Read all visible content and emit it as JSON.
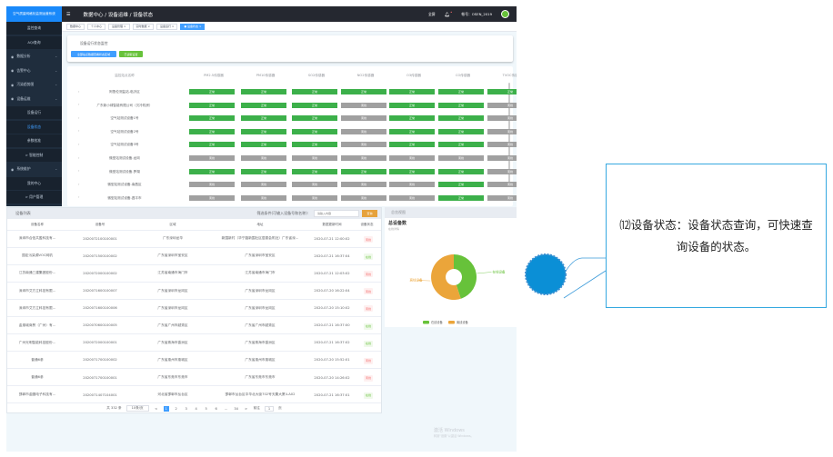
{
  "app": {
    "system_title": "空气质量网格化监测运营系统",
    "breadcrumb": "数据中心 / 设备运维 / 设备状态",
    "fullscreen": "全屏",
    "account": "帐号：OSEN_2019"
  },
  "sidebar": {
    "items": [
      {
        "label": "监控查询",
        "type": "sub"
      },
      {
        "label": "AQI查询",
        "type": "sub"
      },
      {
        "label": "数据分析",
        "type": "main",
        "icon": "bar-chart-icon"
      },
      {
        "label": "告警中心",
        "type": "main",
        "icon": "alarm-icon"
      },
      {
        "label": "污染趋势图",
        "type": "main",
        "icon": "trend-icon"
      },
      {
        "label": "设备运维",
        "type": "main",
        "icon": "gear-icon"
      },
      {
        "label": "设备运行",
        "type": "sub"
      },
      {
        "label": "设备状态",
        "type": "sub",
        "active": true
      },
      {
        "label": "参数校准",
        "type": "sub"
      },
      {
        "label": "> 智能控制",
        "type": "sub"
      },
      {
        "label": "系统维护",
        "type": "main",
        "icon": "gear-icon"
      },
      {
        "label": "我的中心",
        "type": "sub"
      },
      {
        "label": "> 用户管理",
        "type": "sub"
      }
    ]
  },
  "tags": [
    "数据中心",
    "个人中心",
    "设备管理 ×",
    "实时数据 ×",
    "设备运行 ×",
    "● 设备状态 ×"
  ],
  "monitor_card": {
    "title": "设备运行状态监控",
    "btn_all": "全部站点数据查看状态区域",
    "btn_read": "已读取设置"
  },
  "status_grid": {
    "headers": [
      "监控站点名称",
      "PM2.5传感器",
      "PM10传感器",
      "SO2传感器",
      "NO2传感器",
      "O3传感器",
      "CO传感器",
      "TVOC传感器"
    ],
    "labels": {
      "ok": "正常",
      "off": "离线"
    },
    "colors": {
      "ok": "#3cb04a",
      "off": "#a0a0a0"
    },
    "rows": [
      {
        "name": "阿鲁伦测监站-临沂区",
        "s": [
          1,
          1,
          1,
          1,
          1,
          1,
          1
        ]
      },
      {
        "name": "广东新小绿智能有限公司（贝冷机房）",
        "s": [
          1,
          1,
          1,
          0,
          1,
          1,
          0
        ]
      },
      {
        "name": "空气站测试设备1号",
        "s": [
          1,
          1,
          1,
          0,
          1,
          1,
          0
        ]
      },
      {
        "name": "空气站测试设备2号",
        "s": [
          1,
          1,
          1,
          0,
          1,
          1,
          0
        ]
      },
      {
        "name": "空气站测试设备3号",
        "s": [
          1,
          1,
          1,
          0,
          1,
          1,
          0
        ]
      },
      {
        "name": "微型站测试设备-龙岗",
        "s": [
          0,
          0,
          0,
          0,
          0,
          0,
          0
        ]
      },
      {
        "name": "微型站测试设备-罗湖",
        "s": [
          1,
          1,
          1,
          1,
          1,
          1,
          0
        ]
      },
      {
        "name": "微型站测试设备-南昌区",
        "s": [
          0,
          0,
          0,
          0,
          0,
          1,
          0
        ]
      },
      {
        "name": "微型站测试设备-昌平市",
        "s": [
          0,
          0,
          0,
          0,
          0,
          1,
          0
        ]
      }
    ]
  },
  "device_list": {
    "title": "设备列表",
    "filter_label": "筛选条件(可输入设备号和名称):",
    "placeholder": "请输入内容",
    "query": "查询",
    "columns": [
      "设备名称",
      "设备号",
      "区域",
      "地址",
      "数据更新时间",
      "设备状态"
    ],
    "rows": [
      [
        "深圳市合信共盈科技有...",
        "2020072100100001",
        "广东深圳龙华",
        "新围新村（华宁路新围社区居委会附近）广东省深...",
        "2020-07-21 12:00:02",
        "离线"
      ],
      [
        "国定污染源VOC网机",
        "2020071500100002",
        "广东省深圳市宝安区",
        "广东省深圳市宝安区",
        "2020-07-21 16:37:04",
        "在线"
      ],
      [
        "江苏南通三建集团股份...",
        "2020072000100002",
        "江苏省南通市海门市",
        "江苏省南通市海门市",
        "2020-07-21 12:03:02",
        "离线"
      ],
      [
        "深圳市艾方立科技有限...",
        "2020071600100007",
        "广东省深圳市龙岗区",
        "广东省深圳市龙岗区",
        "2020-07-20 16:22:04",
        "离线"
      ],
      [
        "深圳市艾方立科技有限...",
        "2020071600100006",
        "广东省深圳市龙岗区",
        "广东省深圳市龙岗区",
        "2020-07-20 15:10:02",
        "离线"
      ],
      [
        "金惠城商贸（广州）有...",
        "2020070600100005",
        "广东省广州市越秀区",
        "广东省广州市越秀区",
        "2020-07-21 16:37:00",
        "在线"
      ],
      [
        "广州光明智能科技股份...",
        "2020072000100001",
        "广东省珠海市香洲区",
        "广东省珠海市香洲区",
        "2020-07-21 16:37:02",
        "在线"
      ],
      [
        "普通6参",
        "2020071700100002",
        "广东省惠州市惠城区",
        "广东省惠州市惠城区",
        "2020-07-20 15:52:01",
        "离线"
      ],
      [
        "普通6参",
        "2020071700100001",
        "广东省东莞市东莞市",
        "广东省东莞市东莞市",
        "2020-07-20 14:26:02",
        "离线"
      ],
      [
        "邯郸市金圆电子科技有...",
        "2020071407104001",
        "河北省邯郸市丛台区",
        "邯郸市丛台区中华北大街702号天粟大厦4-A02",
        "2020-07-21 16:37:01",
        "在线"
      ]
    ],
    "pager": {
      "total": "共 332 条",
      "size": "10条/页",
      "prev": "<",
      "pages": [
        "1",
        "2",
        "3",
        "4",
        "5",
        "6",
        "...",
        "34"
      ],
      "next": ">",
      "goto": "前往",
      "goto_value": "1",
      "page_unit": "页"
    }
  },
  "overview": {
    "title": "总览视图",
    "chart_title": "总设备数",
    "chart_subtitle": "在线详情",
    "legend": [
      "在线设备",
      "离线设备"
    ],
    "colors": [
      "#67c23a",
      "#eba53a"
    ],
    "share": [
      0.45,
      0.55
    ]
  },
  "callout": {
    "text": "⑿设备状态：设备状态查询，可快速查询设备的状态。"
  },
  "watermark": {
    "line1": "激活 Windows",
    "line2": "转到\"设置\"以激活 Windows。"
  }
}
